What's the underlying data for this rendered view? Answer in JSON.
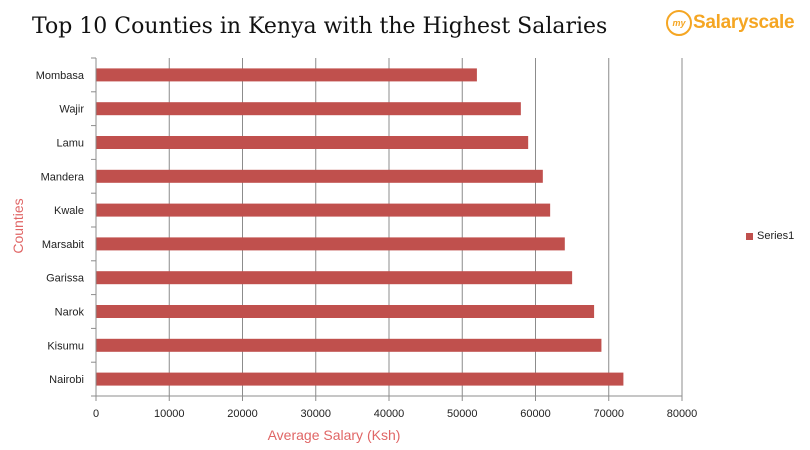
{
  "logo": {
    "badge_text": "my",
    "wordmark": "Salaryscale"
  },
  "chart_data": {
    "type": "bar",
    "orientation": "horizontal",
    "title": "Top 10 Counties in Kenya with the Highest Salaries",
    "xlabel": "Average Salary (Ksh)",
    "ylabel": "Counties",
    "categories": [
      "Mombasa",
      "Wajir",
      "Lamu",
      "Mandera",
      "Kwale",
      "Marsabit",
      "Garissa",
      "Narok",
      "Kisumu",
      "Nairobi"
    ],
    "series": [
      {
        "name": "Series1",
        "values": [
          52000,
          58000,
          59000,
          61000,
          62000,
          64000,
          65000,
          68000,
          69000,
          72000
        ]
      }
    ],
    "xlim": [
      0,
      80000
    ],
    "xticks": [
      0,
      10000,
      20000,
      30000,
      40000,
      50000,
      60000,
      70000,
      80000
    ],
    "grid": "vertical",
    "legend_position": "right",
    "colors": {
      "bar": "#c0504d",
      "axis_label": "#e06666",
      "grid": "#8c8c8c"
    }
  }
}
